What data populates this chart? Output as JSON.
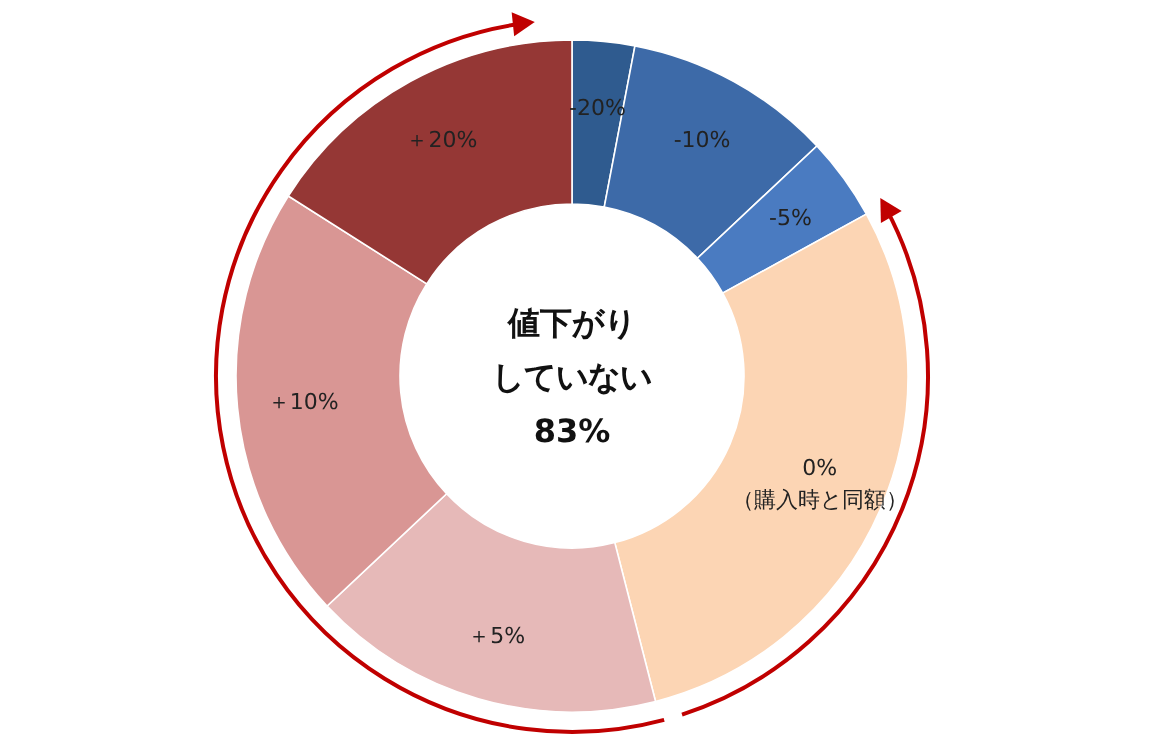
{
  "chart_data": {
    "type": "donut",
    "categories": [
      "-20%",
      "-10%",
      "-5%",
      "0%\n（購入時と同額）",
      "＋5%",
      "＋10%",
      "＋20%"
    ],
    "values": [
      3,
      10,
      4,
      29,
      17,
      21,
      16
    ],
    "colors": [
      "#2f5b8f",
      "#3d6aa8",
      "#4a7bc1",
      "#fcd5b4",
      "#e6b9b8",
      "#d99694",
      "#953735"
    ],
    "annotations": [
      "値下がり",
      "していない",
      "83%"
    ]
  }
}
